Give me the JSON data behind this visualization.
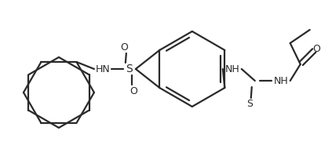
{
  "bg_color": "#ffffff",
  "line_color": "#2a2a2a",
  "line_width": 1.6,
  "fig_width": 4.09,
  "fig_height": 1.85,
  "dpi": 100,
  "xlim": [
    0,
    409
  ],
  "ylim": [
    0,
    185
  ]
}
